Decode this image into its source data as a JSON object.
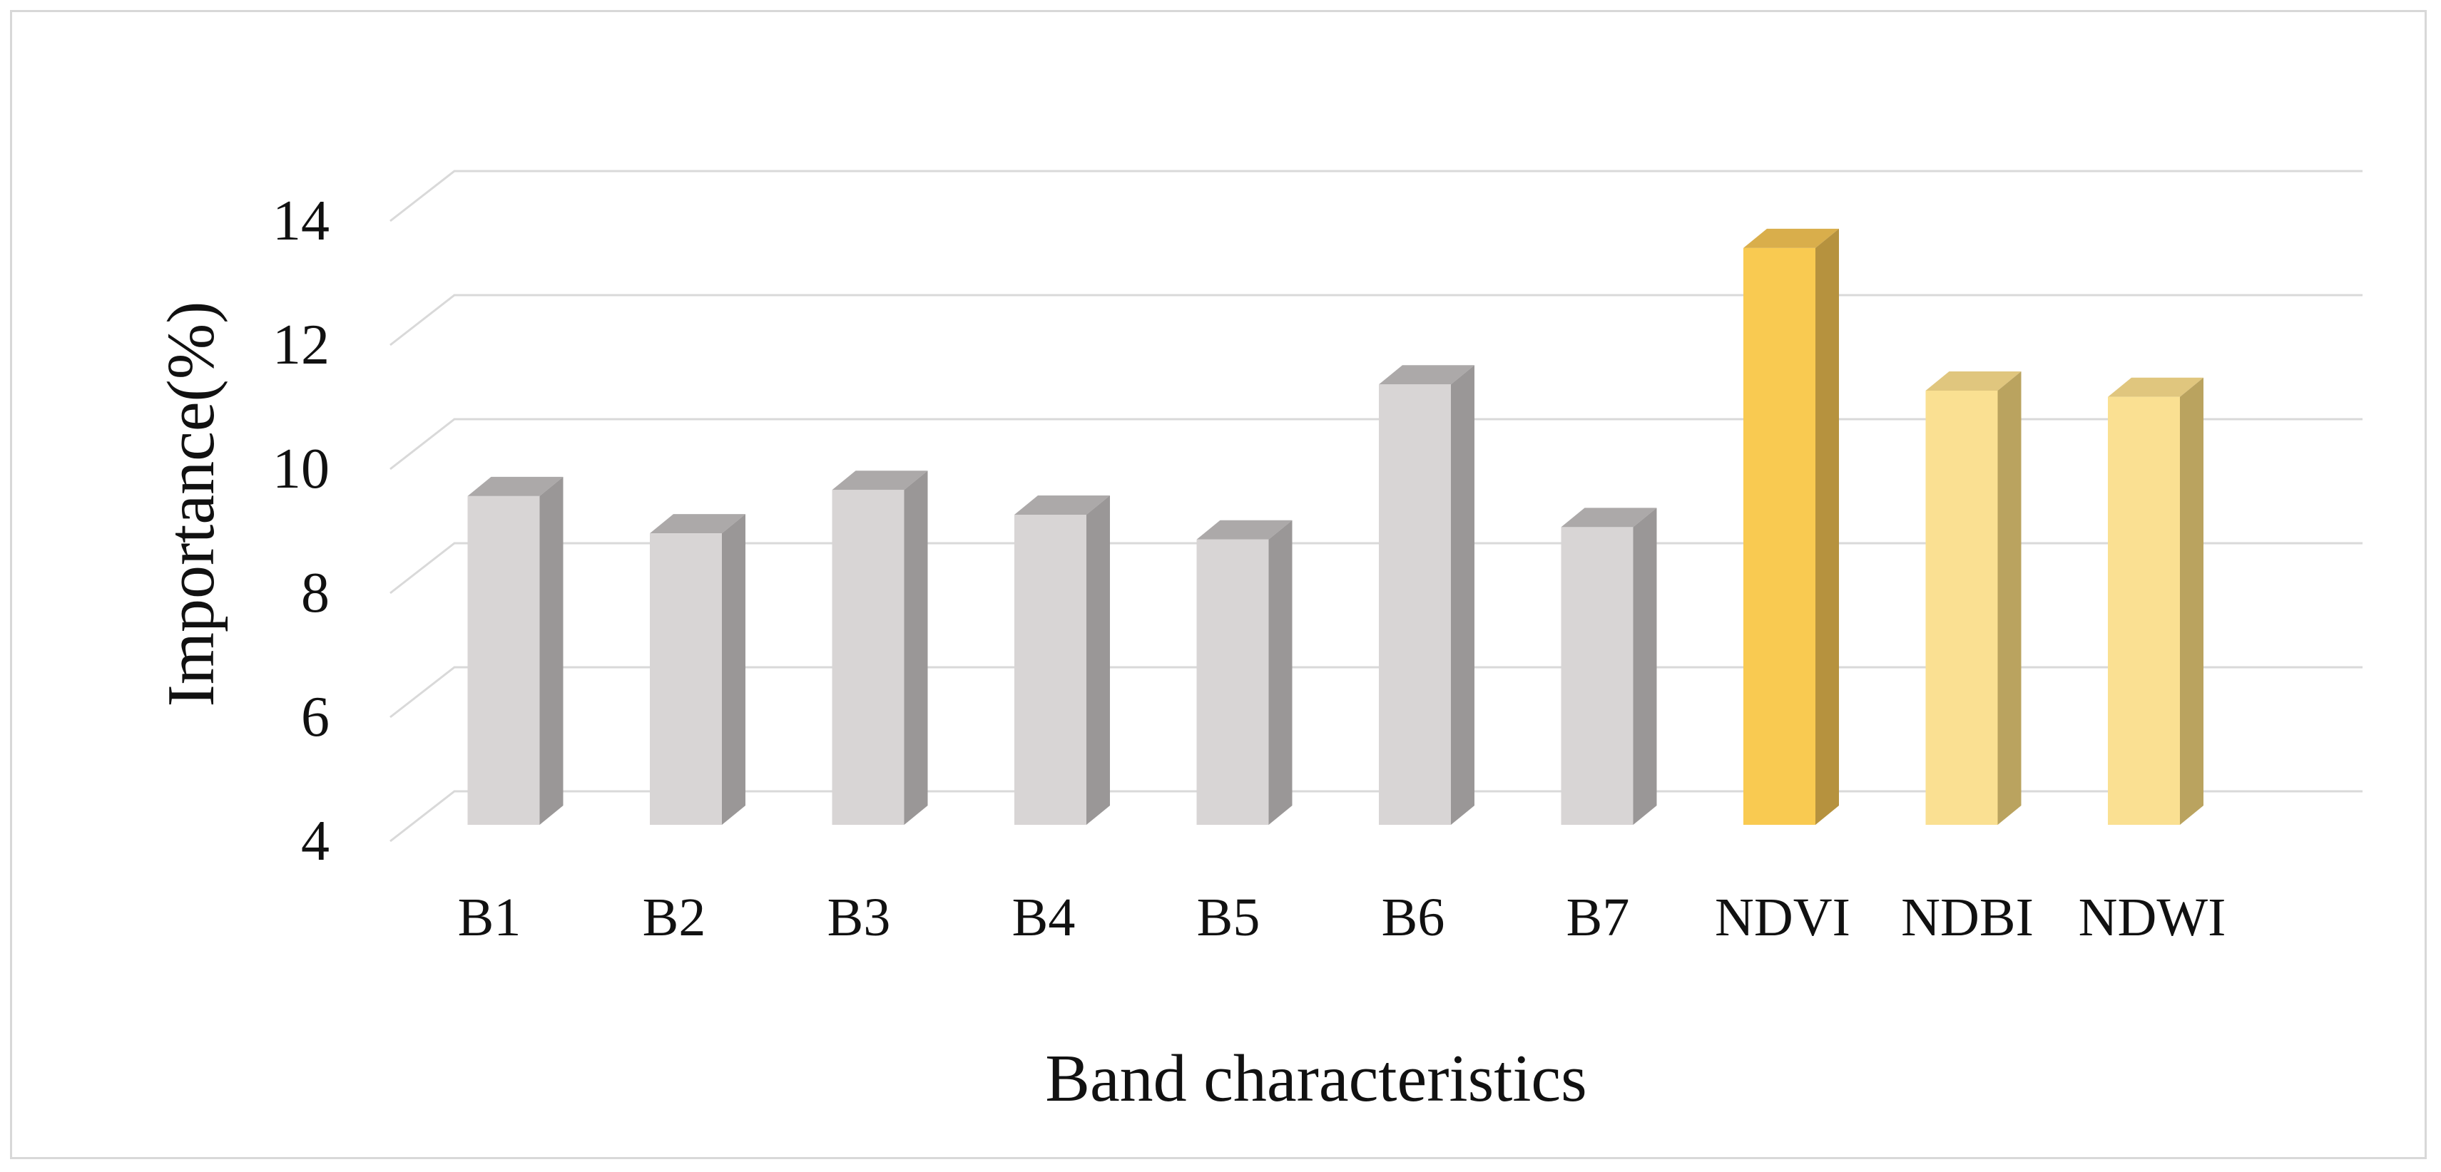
{
  "figure": {
    "background": "#FFFFFF",
    "border_color": "#D8D8D8"
  },
  "chart_data": {
    "type": "bar",
    "style": "3d-column",
    "title": "",
    "xlabel": "Band characteristics",
    "ylabel": "Importance(%)",
    "categories": [
      "B1",
      "B2",
      "B3",
      "B4",
      "B5",
      "B6",
      "B7",
      "NDVI",
      "NDBI",
      "NDWI"
    ],
    "values": [
      9.3,
      8.7,
      9.4,
      9.0,
      8.6,
      11.1,
      8.8,
      13.3,
      11.0,
      10.9
    ],
    "bar_colors": [
      "gray",
      "gray",
      "gray",
      "gray",
      "gray",
      "gray",
      "gray",
      "gold",
      "pale_gold",
      "pale_gold"
    ],
    "ylim": [
      4,
      14
    ],
    "yticks": [
      4,
      6,
      8,
      10,
      12,
      14
    ],
    "grid": true,
    "legend": false,
    "gridline_color": "#D9D9D9",
    "text_color": "#111111",
    "palette": {
      "gray": {
        "front": "#D8D5D5",
        "top": "#ACA9A9",
        "side": "#9A9797"
      },
      "gold": {
        "front": "#F9CA51",
        "top": "#D9AE4B",
        "side": "#B6923E"
      },
      "pale_gold": {
        "front": "#FAE092",
        "top": "#E0C67E",
        "side": "#BAA35F"
      }
    }
  }
}
